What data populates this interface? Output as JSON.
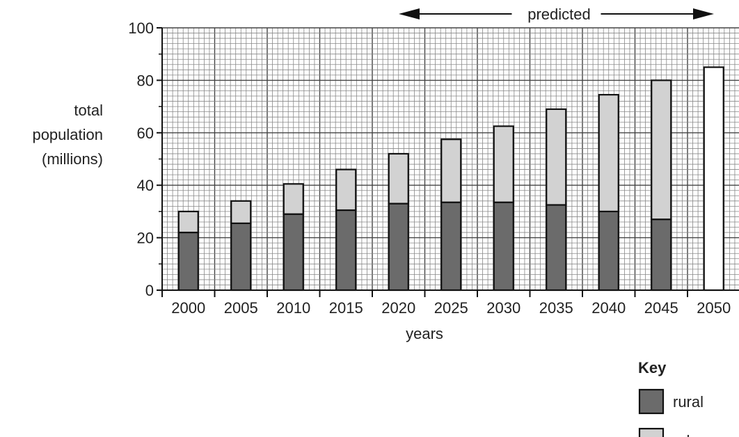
{
  "chart_data": {
    "type": "bar",
    "stacked": true,
    "categories": [
      "2000",
      "2005",
      "2010",
      "2015",
      "2020",
      "2025",
      "2030",
      "2035",
      "2040",
      "2045",
      "2050"
    ],
    "series": [
      {
        "name": "rural",
        "values": [
          22,
          25.5,
          29,
          30.5,
          33,
          33.5,
          33.5,
          32.5,
          30,
          27,
          null
        ]
      },
      {
        "name": "urban",
        "values": [
          8,
          8.5,
          11.5,
          15.5,
          19,
          24,
          29,
          36.5,
          44.5,
          53,
          null
        ]
      }
    ],
    "totals_only": {
      "2050": 85
    },
    "ylim": [
      0,
      100
    ],
    "yticks": [
      "0",
      "20",
      "40",
      "60",
      "80",
      "100"
    ],
    "xlabel": "years",
    "ylabel": [
      "total",
      "population",
      "(millions)"
    ],
    "grid": true,
    "predicted_label": "predicted",
    "predicted_range": [
      "2020",
      "2050"
    ],
    "legend": {
      "title": "Key",
      "placement": "bottom-right",
      "items": [
        {
          "name": "rural",
          "color": "#6b6b6b"
        },
        {
          "name": "urban",
          "color": "#d2d2d2"
        }
      ]
    }
  }
}
